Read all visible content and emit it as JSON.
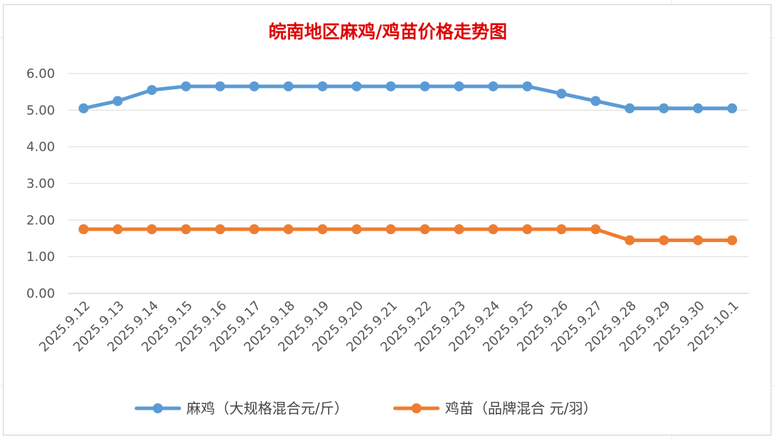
{
  "chart_data": {
    "type": "line",
    "title": "皖南地区麻鸡/鸡苗价格走势图",
    "xlabel": "",
    "ylabel": "",
    "categories": [
      "2025.9.12",
      "2025.9.13",
      "2025.9.14",
      "2025.9.15",
      "2025.9.16",
      "2025.9.17",
      "2025.9.18",
      "2025.9.19",
      "2025.9.20",
      "2025.9.21",
      "2025.9.22",
      "2025.9.23",
      "2025.9.24",
      "2025.9.25",
      "2025.9.26",
      "2025.9.27",
      "2025.9.28",
      "2025.9.29",
      "2025.9.30",
      "2025.10.1"
    ],
    "ylim": [
      0,
      6
    ],
    "yticks": [
      "0.00",
      "1.00",
      "2.00",
      "3.00",
      "4.00",
      "5.00",
      "6.00"
    ],
    "grid": true,
    "legend_position": "bottom",
    "series": [
      {
        "name": "麻鸡（大规格混合元/斤）",
        "color": "#5b9bd5",
        "values": [
          5.05,
          5.25,
          5.55,
          5.65,
          5.65,
          5.65,
          5.65,
          5.65,
          5.65,
          5.65,
          5.65,
          5.65,
          5.65,
          5.65,
          5.45,
          5.25,
          5.05,
          5.05,
          5.05,
          5.05
        ]
      },
      {
        "name": "鸡苗（品牌混合 元/羽）",
        "color": "#ed7d31",
        "values": [
          1.75,
          1.75,
          1.75,
          1.75,
          1.75,
          1.75,
          1.75,
          1.75,
          1.75,
          1.75,
          1.75,
          1.75,
          1.75,
          1.75,
          1.75,
          1.75,
          1.45,
          1.45,
          1.45,
          1.45
        ]
      }
    ]
  }
}
